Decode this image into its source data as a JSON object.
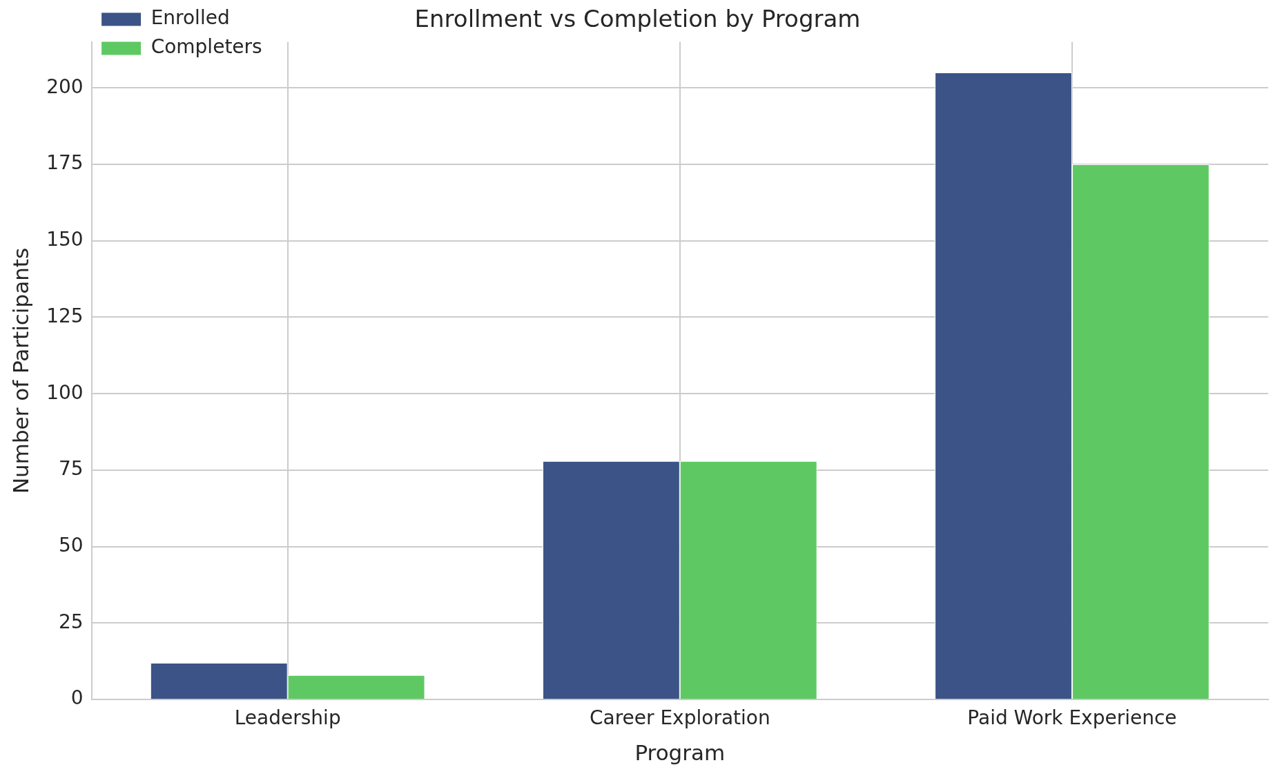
{
  "chart_data": {
    "type": "bar",
    "title": "Enrollment vs Completion by Program",
    "xlabel": "Program",
    "ylabel": "Number of Participants",
    "categories": [
      "Leadership",
      "Career Exploration",
      "Paid Work Experience"
    ],
    "series": [
      {
        "name": "Enrolled",
        "color": "#3b5387",
        "values": [
          12,
          78,
          205
        ]
      },
      {
        "name": "Completers",
        "color": "#5ec962",
        "values": [
          8,
          78,
          175
        ]
      }
    ],
    "ylim": [
      0,
      215
    ],
    "yticks": [
      0,
      25,
      50,
      75,
      100,
      125,
      150,
      175,
      200
    ],
    "grid": true,
    "legend": "top left"
  }
}
